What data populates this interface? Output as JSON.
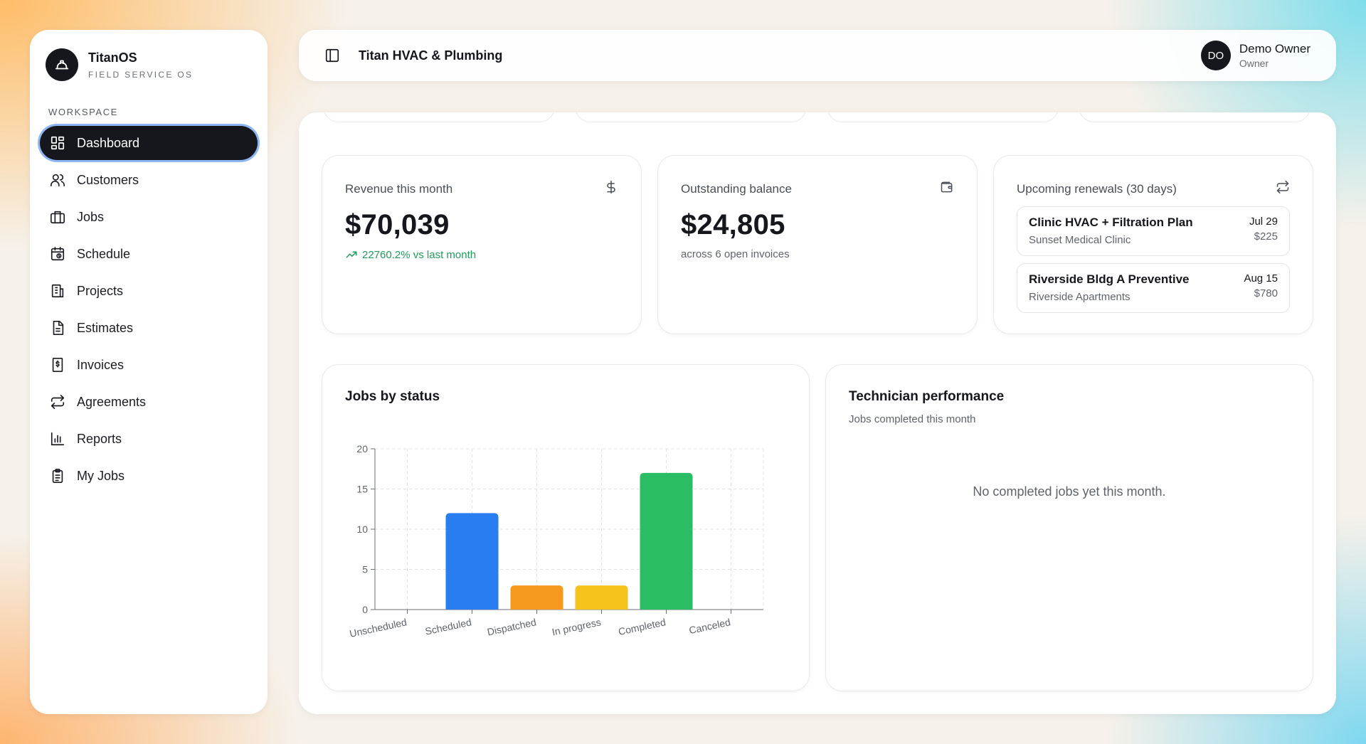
{
  "brand": {
    "name": "TitanOS",
    "subtitle": "FIELD SERVICE OS"
  },
  "sidebar": {
    "section_label": "WORKSPACE",
    "items": [
      {
        "label": "Dashboard",
        "icon": "dashboard-grid-icon",
        "active": true
      },
      {
        "label": "Customers",
        "icon": "users-icon"
      },
      {
        "label": "Jobs",
        "icon": "briefcase-icon"
      },
      {
        "label": "Schedule",
        "icon": "calendar-clock-icon"
      },
      {
        "label": "Projects",
        "icon": "building-icon"
      },
      {
        "label": "Estimates",
        "icon": "document-icon"
      },
      {
        "label": "Invoices",
        "icon": "receipt-dollar-icon"
      },
      {
        "label": "Agreements",
        "icon": "repeat-icon"
      },
      {
        "label": "Reports",
        "icon": "bar-chart-icon"
      },
      {
        "label": "My Jobs",
        "icon": "clipboard-icon"
      }
    ]
  },
  "header": {
    "company": "Titan HVAC & Plumbing",
    "user": {
      "initials": "DO",
      "name": "Demo Owner",
      "role": "Owner"
    }
  },
  "kpis": {
    "revenue": {
      "label": "Revenue this month",
      "value": "$70,039",
      "sub": "22760.2% vs last month",
      "icon": "dollar-icon"
    },
    "outstanding": {
      "label": "Outstanding balance",
      "value": "$24,805",
      "sub": "across 6 open invoices",
      "icon": "wallet-icon"
    }
  },
  "renewals": {
    "label": "Upcoming renewals (30 days)",
    "icon": "repeat-icon",
    "items": [
      {
        "title": "Clinic HVAC + Filtration Plan",
        "client": "Sunset Medical Clinic",
        "date": "Jul 29",
        "amount": "$225"
      },
      {
        "title": "Riverside Bldg A Preventive",
        "client": "Riverside Apartments",
        "date": "Aug 15",
        "amount": "$780"
      }
    ]
  },
  "jobs_chart": {
    "title": "Jobs by status"
  },
  "technician": {
    "title": "Technician performance",
    "subtitle": "Jobs completed this month",
    "empty_message": "No completed jobs yet this month."
  },
  "colors": {
    "Scheduled": "#2a7df0",
    "Dispatched": "#f59a1e",
    "In progress": "#f6c21c",
    "Completed": "#2bbd63",
    "accent_active": "#15171c",
    "positive": "#1f9a5b"
  },
  "chart_data": {
    "type": "bar",
    "categories": [
      "Unscheduled",
      "Scheduled",
      "Dispatched",
      "In progress",
      "Completed",
      "Canceled"
    ],
    "values": [
      0,
      12,
      3,
      3,
      17,
      0
    ],
    "yticks": [
      0,
      5,
      10,
      15,
      20
    ],
    "ylim": [
      0,
      20
    ],
    "grid": true,
    "xlabel": "",
    "ylabel": ""
  }
}
